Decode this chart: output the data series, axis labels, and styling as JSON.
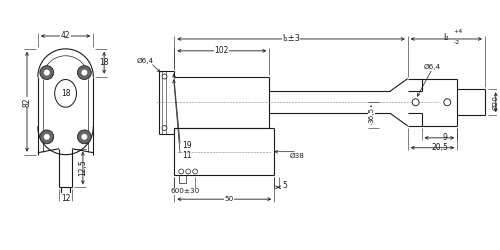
{
  "bg_color": "#ffffff",
  "line_color": "#1a1a1a",
  "font_size": 5.5,
  "annotations": {
    "dim_42": "42",
    "dim_82": "82",
    "dim_18r": "18",
    "dim_18c": "18",
    "dim_12": "12",
    "dim_12_5": "12,5",
    "dim_102": "102",
    "dim_l1": "l₁±3",
    "dim_l2": "l₂",
    "dim_l2_tol": "+4\n-2",
    "dim_phi6_4_l": "Ø6,4",
    "dim_phi6_4_r": "Ø6,4",
    "dim_phi38": "Ø38",
    "dim_phi20": "Ø20",
    "dim_19": "19",
    "dim_11": "11",
    "dim_36_5": "36,5",
    "dim_9": "9",
    "dim_20_5": "20,5",
    "dim_5": "5",
    "dim_50": "50",
    "dim_600": "600±30"
  }
}
